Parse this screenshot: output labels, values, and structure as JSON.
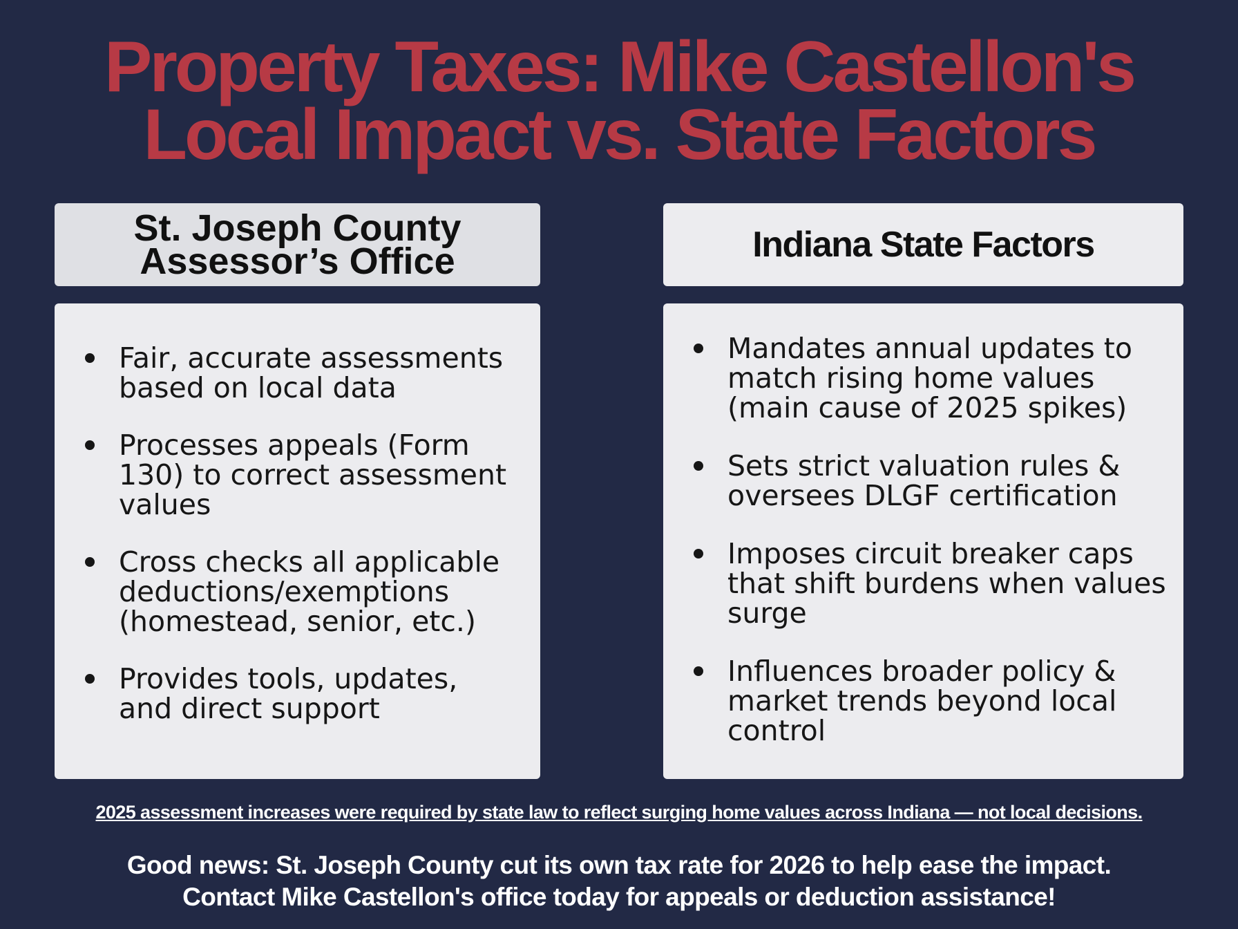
{
  "colors": {
    "background": "#222945",
    "title": "#b73a45",
    "header_left_bg": "#dfe0e4",
    "panel_bg": "#ececef",
    "text_dark": "#161616",
    "text_light": "#ffffff"
  },
  "title": {
    "line1": "Property Taxes: Mike Castellon's",
    "line2": "Local Impact vs. State Factors"
  },
  "left": {
    "heading_line1": "St. Joseph County",
    "heading_line2": "Assessor’s Office",
    "items": [
      {
        "line1": "Fair, accurate assessments",
        "line2": "based on local data"
      },
      {
        "line1": "Processes appeals (Form",
        "line2": "130) to correct assessment",
        "line3": "values"
      },
      {
        "line1": "Cross checks all applicable",
        "line2": "deductions/exemptions",
        "line3": "(homestead, senior, etc.)"
      },
      {
        "line1": "Provides tools, updates,",
        "line2": "and direct support"
      }
    ]
  },
  "right": {
    "heading": "Indiana State Factors",
    "items": [
      {
        "line1": "Mandates annual updates to",
        "line2": "match rising home values",
        "line3": "(main cause of 2025 spikes)"
      },
      {
        "line1": "Sets strict valuation rules &",
        "line2": "oversees DLGF certification"
      },
      {
        "line1": "Imposes circuit breaker caps",
        "line2": "that shift burdens when values",
        "line3": "surge"
      },
      {
        "line1": "Influences broader policy &",
        "line2": "market trends beyond local",
        "line3": "control"
      }
    ]
  },
  "footnote": "2025 assessment increases were required by state law to reflect surging home values across Indiana — not local decisions.",
  "footer": {
    "line1": "Good news: St. Joseph County cut its own tax rate for 2026 to help ease the impact.",
    "line2": "Contact Mike Castellon's office today for appeals or deduction assistance!"
  }
}
